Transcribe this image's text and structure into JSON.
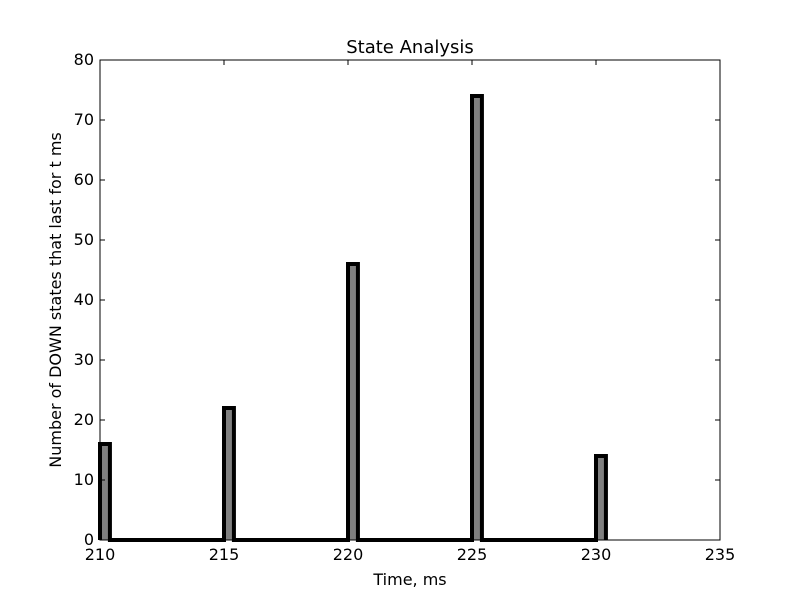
{
  "chart_data": {
    "type": "bar",
    "title": "State Analysis",
    "xlabel": "Time, ms",
    "ylabel": "Number of DOWN states that last for t ms",
    "x": [
      210,
      215,
      220,
      225,
      230
    ],
    "values": [
      16,
      22,
      46,
      74,
      14
    ],
    "bar_width": 0.4,
    "xlim": [
      210,
      235
    ],
    "ylim": [
      0,
      80
    ],
    "xticks": [
      210,
      215,
      220,
      225,
      230,
      235
    ],
    "yticks": [
      0,
      10,
      20,
      30,
      40,
      50,
      60,
      70,
      80
    ],
    "grid": false,
    "style": "histogram-step",
    "colors": {
      "fill": "#808080",
      "edge": "#000000"
    }
  }
}
